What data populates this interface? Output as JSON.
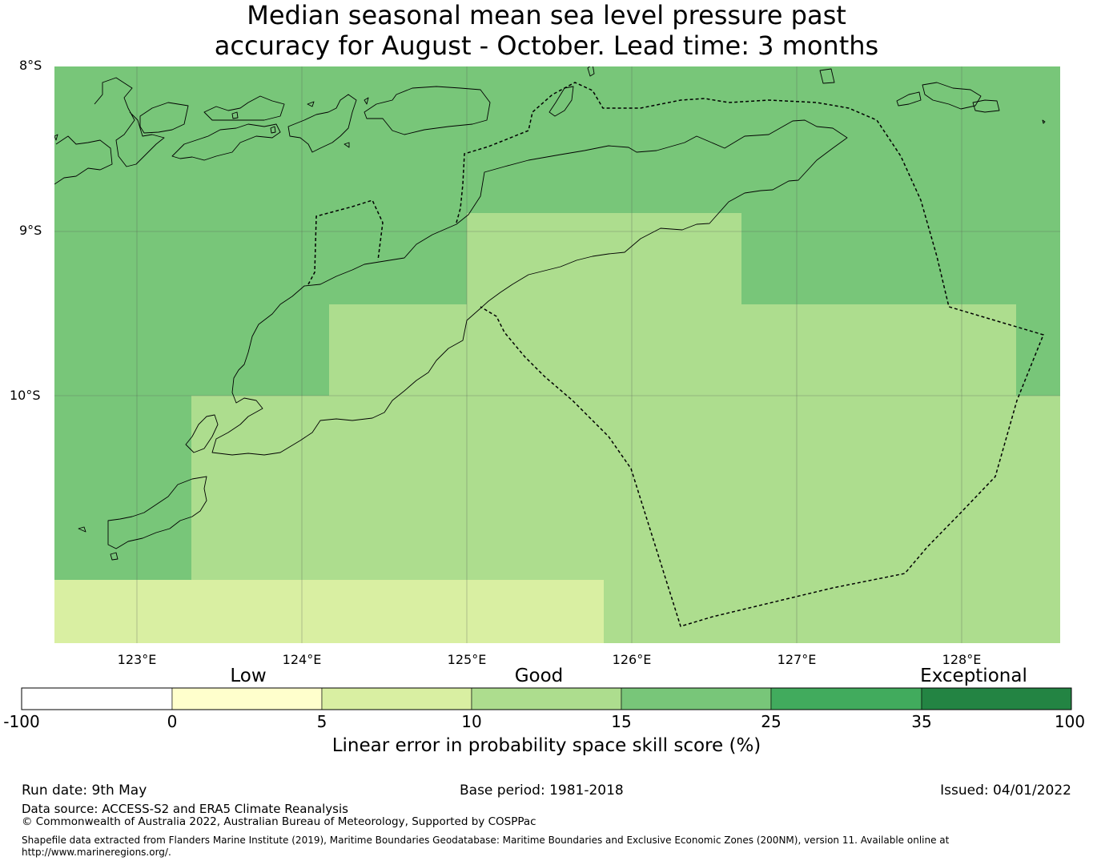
{
  "title": {
    "line1": "Median seasonal mean sea level pressure past",
    "line2": "accuracy for August - October. Lead time: 3 months"
  },
  "map": {
    "lat_labels": [
      "8°S",
      "9°S",
      "10°S"
    ],
    "lon_labels": [
      "123°E",
      "124°E",
      "125°E",
      "126°E",
      "127°E",
      "128°E"
    ],
    "colors": {
      "skill_5_10": "#d9efa2",
      "skill_10_15": "#addd8e",
      "skill_15_25": "#78c679",
      "coastline": "#000000",
      "boundary": "#000000",
      "gridline": "#555555"
    }
  },
  "colorbar": {
    "categories": [
      "Low",
      "Good",
      "Exceptional"
    ],
    "ticks": [
      "-100",
      "0",
      "5",
      "10",
      "15",
      "25",
      "35",
      "100"
    ],
    "colors": [
      "#ffffff",
      "#ffffcc",
      "#d9efa2",
      "#addd8e",
      "#78c679",
      "#41ab5d",
      "#238443"
    ],
    "title": "Linear error in probability space skill score (%)"
  },
  "footer": {
    "run_date": "Run date: 9th May",
    "base_period": "Base period: 1981-2018",
    "issued": "Issued: 04/01/2022",
    "data_source": "Data source: ACCESS-S2 and ERA5 Climate Reanalysis",
    "copyright": "© Commonwealth of Australia 2022, Australian Bureau of Meteorology, Supported by COSPPac",
    "shapefile_line1": "Shapefile data extracted from Flanders Marine Institute (2019), Maritime Boundaries Geodatabase: Maritime Boundaries and Exclusive Economic Zones (200NM), version 11. Available online at",
    "shapefile_line2": "http://www.marineregions.org/."
  }
}
